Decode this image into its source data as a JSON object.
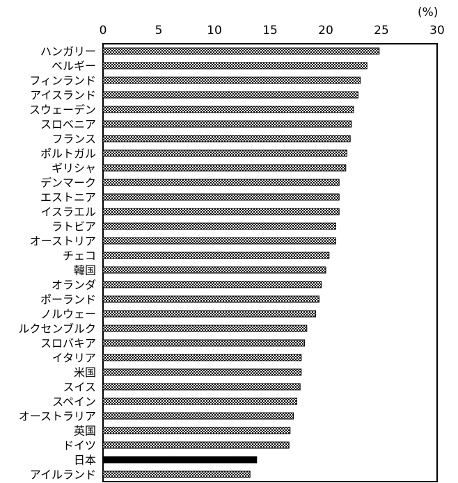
{
  "chart_data": {
    "type": "bar",
    "orientation": "horizontal",
    "unit_label": "(%)",
    "xlim": [
      0,
      30
    ],
    "xticks": [
      0,
      5,
      10,
      15,
      20,
      25,
      30
    ],
    "grid": false,
    "categories": [
      "ハンガリー",
      "ベルギー",
      "フィンランド",
      "アイスランド",
      "スウェーデン",
      "スロベニア",
      "フランス",
      "ポルトガル",
      "ギリシャ",
      "デンマーク",
      "エストニア",
      "イスラエル",
      "ラトビア",
      "オーストリア",
      "チェコ",
      "韓国",
      "オランダ",
      "ポーランド",
      "ノルウェー",
      "ルクセンブルク",
      "スロバキア",
      "イタリア",
      "米国",
      "スイス",
      "スペイン",
      "オーストラリア",
      "英国",
      "ドイツ",
      "日本",
      "アイルランド"
    ],
    "values": [
      24.8,
      23.7,
      23.1,
      22.9,
      22.5,
      22.3,
      22.2,
      21.9,
      21.8,
      21.2,
      21.2,
      21.2,
      20.9,
      20.9,
      20.3,
      20.0,
      19.6,
      19.4,
      19.1,
      18.3,
      18.1,
      17.8,
      17.8,
      17.7,
      17.4,
      17.1,
      16.8,
      16.7,
      13.8,
      13.2
    ],
    "highlight": "日本",
    "colors": {
      "highlight": "#000000",
      "bar_border": "#000000",
      "pattern": "#ffffff"
    }
  }
}
